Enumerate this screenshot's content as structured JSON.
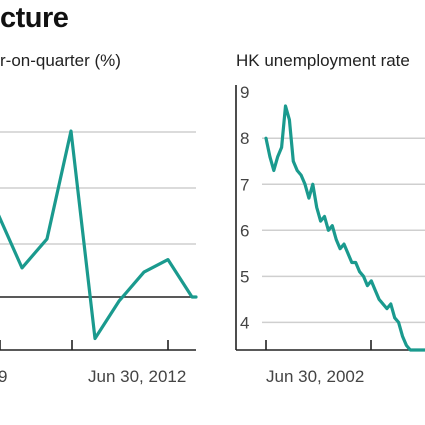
{
  "headline": "cture",
  "chart_data": [
    {
      "type": "line",
      "title": "r-on-quarter (%)",
      "x_tick_labels": [
        "9",
        "Jun 30, 2012"
      ],
      "baseline": true,
      "grid": true,
      "color": "#1a9a8e",
      "series": [
        {
          "x": [
            0,
            1,
            2,
            3,
            4,
            5,
            6,
            7,
            8,
            9
          ],
          "values": [
            2.0,
            0.7,
            1.4,
            4.0,
            -1.0,
            -0.1,
            0.6,
            0.9,
            0.0,
            0.0
          ]
        }
      ]
    },
    {
      "type": "line",
      "title": "HK unemployment rate",
      "x_tick_labels": [
        "Jun 30, 2002"
      ],
      "y_tick_labels": [
        "9",
        "8",
        "7",
        "6",
        "5",
        "4"
      ],
      "ylim": [
        3.4,
        9.2
      ],
      "grid": true,
      "color": "#1a9a8e",
      "series": [
        {
          "x": [
            0,
            0.05,
            0.1,
            0.15,
            0.2,
            0.25,
            0.3,
            0.35,
            0.4,
            0.45,
            0.5,
            0.55,
            0.6,
            0.65,
            0.7,
            0.75,
            0.8,
            0.85,
            0.9,
            0.95,
            1.0,
            1.05,
            1.1,
            1.15,
            1.2,
            1.25,
            1.3,
            1.35,
            1.4,
            1.45,
            1.5,
            1.55,
            1.6,
            1.65,
            1.7,
            1.75,
            1.8,
            1.85,
            1.9,
            1.95,
            2.0,
            2.05
          ],
          "values": [
            8.0,
            7.6,
            7.3,
            7.6,
            7.8,
            8.7,
            8.4,
            7.5,
            7.3,
            7.2,
            7.0,
            6.7,
            7.0,
            6.5,
            6.2,
            6.3,
            6.0,
            6.1,
            5.8,
            5.6,
            5.7,
            5.5,
            5.3,
            5.3,
            5.1,
            5.0,
            4.8,
            4.9,
            4.7,
            4.5,
            4.4,
            4.3,
            4.4,
            4.1,
            4.0,
            3.7,
            3.5,
            3.4,
            3.4,
            3.4,
            3.4,
            3.4
          ]
        }
      ]
    }
  ]
}
